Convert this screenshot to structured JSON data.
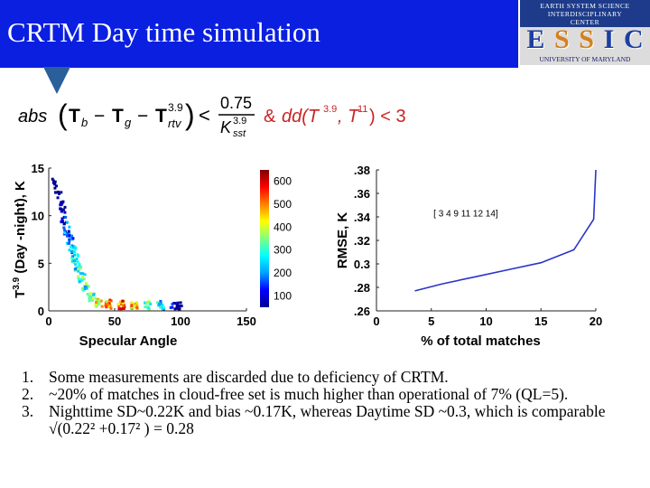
{
  "slide": {
    "title": "CRTM Day time simulation",
    "logo": {
      "top_line1": "EARTH SYSTEM SCIENCE",
      "top_line2": "INTERDISCIPLINARY",
      "top_line3": "CENTER",
      "letters": [
        "E",
        "S",
        "S",
        "I",
        "C"
      ],
      "bottom": "UNIVERSITY OF MARYLAND"
    },
    "formula": {
      "abs": "abs",
      "tb": "T",
      "tb_sub": "b",
      "minus1": "−",
      "tg": "T",
      "tg_sub": "g",
      "minus2": "−",
      "trtv": "T",
      "trtv_sup": "3.9",
      "trtv_sub": "rtv",
      "lt": "<",
      "frac_num": "0.75",
      "frac_den": "K",
      "frac_den_sup": "3.9",
      "frac_den_sub": "sst",
      "amp": "&",
      "dd": "dd(T",
      "dd_sup1": "3.9",
      "dd_mid": ", T",
      "dd_sup2": "11",
      "dd_end": ") < 3"
    },
    "list": [
      {
        "num": "1.",
        "text": "Some measurements are discarded due to deficiency of CRTM."
      },
      {
        "num": "2.",
        "text": "~20% of matches in cloud-free set is much higher than operational of 7% (QL=5)."
      },
      {
        "num": "3.",
        "text": "Nighttime SD~0.22K and bias ~0.17K, whereas Daytime SD ~0.3, which is comparable √(0.22² +0.17² ) = 0.28"
      }
    ]
  },
  "chart_data": [
    {
      "type": "scatter",
      "title": "",
      "xlabel": "Specular Angle",
      "ylabel_prefix": "T",
      "ylabel_sup": "3.9",
      "ylabel_rest": "(Day -night), K",
      "xlim": [
        0,
        150
      ],
      "ylim": [
        0,
        15
      ],
      "xticks": [
        "0",
        "50",
        "100",
        "150"
      ],
      "yticks": [
        "0",
        "5",
        "10",
        "15"
      ],
      "colorbar": {
        "ticks": [
          "100",
          "200",
          "300",
          "400",
          "500",
          "600"
        ],
        "range": [
          50,
          650
        ],
        "colors": [
          "#00008f",
          "#0000ff",
          "#00a0ff",
          "#00ffff",
          "#80ff80",
          "#ffff00",
          "#ff8000",
          "#ff0000",
          "#800000"
        ]
      },
      "density": [
        {
          "x": 5,
          "y": 13.5,
          "density": 60
        },
        {
          "x": 7,
          "y": 12.5,
          "density": 80
        },
        {
          "x": 9,
          "y": 11.5,
          "density": 120
        },
        {
          "x": 10,
          "y": 10.5,
          "density": 160
        },
        {
          "x": 12,
          "y": 9.5,
          "density": 220
        },
        {
          "x": 14,
          "y": 8.5,
          "density": 260
        },
        {
          "x": 16,
          "y": 7.5,
          "density": 300
        },
        {
          "x": 18,
          "y": 6.5,
          "density": 340
        },
        {
          "x": 20,
          "y": 5.5,
          "density": 360
        },
        {
          "x": 22,
          "y": 4.5,
          "density": 380
        },
        {
          "x": 25,
          "y": 3.5,
          "density": 400
        },
        {
          "x": 28,
          "y": 2.5,
          "density": 380
        },
        {
          "x": 32,
          "y": 1.5,
          "density": 420
        },
        {
          "x": 38,
          "y": 0.9,
          "density": 500
        },
        {
          "x": 45,
          "y": 0.7,
          "density": 580
        },
        {
          "x": 55,
          "y": 0.6,
          "density": 620
        },
        {
          "x": 65,
          "y": 0.6,
          "density": 560
        },
        {
          "x": 75,
          "y": 0.6,
          "density": 450
        },
        {
          "x": 85,
          "y": 0.6,
          "density": 320
        },
        {
          "x": 95,
          "y": 0.6,
          "density": 200
        },
        {
          "x": 100,
          "y": 0.5,
          "density": 120
        }
      ]
    },
    {
      "type": "line",
      "title": "",
      "xlabel": "% of total matches",
      "ylabel": "RMSE, K",
      "xlim": [
        0,
        20
      ],
      "ylim": [
        0.26,
        0.38
      ],
      "xticks": [
        "0",
        "5",
        "10",
        "15",
        "20"
      ],
      "yticks": [
        ".26",
        ".28",
        "0.3",
        ".32",
        ".34",
        ".36",
        ".38"
      ],
      "annotation": "[ 3 4 9 11 12 14]",
      "color": "#2a34c8",
      "series": [
        {
          "name": "RMSE",
          "x": [
            3.5,
            6,
            9,
            12,
            15,
            18,
            19.8,
            20
          ],
          "y": [
            0.277,
            0.283,
            0.289,
            0.295,
            0.301,
            0.312,
            0.338,
            0.38
          ]
        }
      ]
    }
  ]
}
